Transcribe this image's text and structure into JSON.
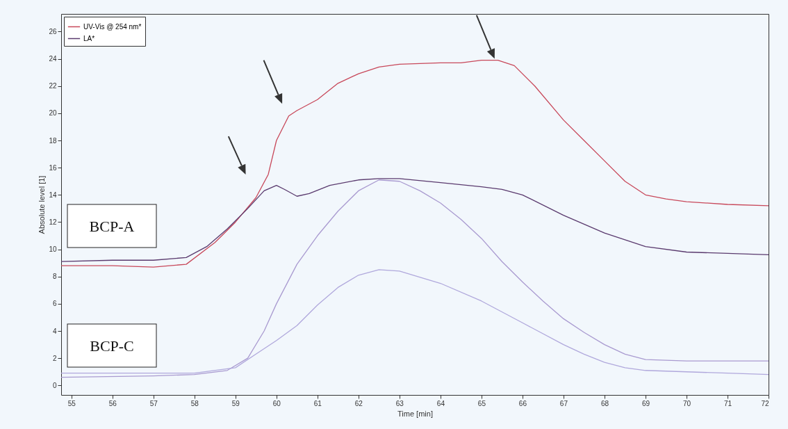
{
  "chart_data": {
    "type": "line",
    "xlabel": "Time [min]",
    "ylabel": "Absolute level [1]",
    "xlim": [
      54.75,
      72
    ],
    "xticks": [
      55,
      56,
      57,
      58,
      59,
      60,
      61,
      62,
      63,
      64,
      65,
      66,
      67,
      68,
      69,
      70,
      71,
      72
    ],
    "ylim": [
      -0.7,
      27.3
    ],
    "yticks": [
      0,
      2,
      4,
      6,
      8,
      10,
      12,
      14,
      16,
      18,
      20,
      22,
      24,
      26
    ],
    "grid": false,
    "legend": "top left",
    "line_style": "solid",
    "marker": "none",
    "annotations": [
      "BCP-A",
      "BCP-C"
    ],
    "series": [
      {
        "name": "UV-Vis @ 254 nm*",
        "color": "#c8485a",
        "x": [
          54.75,
          56,
          57,
          57.8,
          58.5,
          59,
          59.5,
          59.8,
          60,
          60.3,
          60.5,
          61,
          61.5,
          62,
          62.5,
          63,
          64,
          64.5,
          65,
          65.4,
          65.8,
          66.3,
          67,
          67.5,
          68,
          68.5,
          69,
          69.5,
          70,
          71,
          72
        ],
        "values": [
          8.8,
          8.8,
          8.7,
          8.9,
          10.5,
          12,
          13.8,
          15.5,
          18,
          19.8,
          20.2,
          21,
          22.2,
          22.9,
          23.4,
          23.6,
          23.7,
          23.7,
          23.9,
          23.9,
          23.5,
          22,
          19.5,
          18,
          16.5,
          15,
          14,
          13.7,
          13.5,
          13.3,
          13.2
        ]
      },
      {
        "name": "LA*",
        "color": "#5a3a6e",
        "x": [
          54.75,
          56,
          57,
          57.8,
          58.3,
          58.8,
          59.3,
          59.7,
          60,
          60.2,
          60.5,
          60.8,
          61.3,
          62,
          62.5,
          63,
          64,
          65,
          65.5,
          66,
          67,
          68,
          68.5,
          69,
          70,
          71,
          72
        ],
        "values": [
          9.1,
          9.2,
          9.2,
          9.4,
          10.2,
          11.5,
          13,
          14.3,
          14.7,
          14.4,
          13.9,
          14.1,
          14.7,
          15.1,
          15.2,
          15.2,
          14.9,
          14.6,
          14.4,
          14,
          12.5,
          11.2,
          10.7,
          10.2,
          9.8,
          9.7,
          9.6
        ]
      },
      {
        "color": "#a99ad0",
        "x": [
          54.75,
          57,
          58,
          58.8,
          59.3,
          59.7,
          60,
          60.5,
          61,
          61.5,
          62,
          62.5,
          63,
          63.5,
          64,
          64.5,
          65,
          65.5,
          66,
          66.5,
          67,
          67.5,
          68,
          68.5,
          69,
          70,
          72
        ],
        "values": [
          0.6,
          0.7,
          0.8,
          1.1,
          2,
          4,
          6,
          8.9,
          11,
          12.8,
          14.3,
          15.1,
          15,
          14.3,
          13.4,
          12.2,
          10.8,
          9.1,
          7.6,
          6.2,
          4.9,
          3.9,
          3,
          2.3,
          1.9,
          1.8,
          1.8
        ]
      },
      {
        "color": "#b0a8dc",
        "x": [
          54.75,
          58,
          59,
          59.5,
          60,
          60.5,
          61,
          61.5,
          62,
          62.5,
          63,
          64,
          65,
          66,
          67,
          67.5,
          68,
          68.5,
          69,
          70,
          71,
          72
        ],
        "values": [
          0.9,
          0.9,
          1.3,
          2.3,
          3.3,
          4.4,
          5.9,
          7.2,
          8.1,
          8.5,
          8.4,
          7.5,
          6.2,
          4.6,
          3,
          2.3,
          1.7,
          1.3,
          1.1,
          1.0,
          0.9,
          0.8
        ]
      }
    ]
  }
}
